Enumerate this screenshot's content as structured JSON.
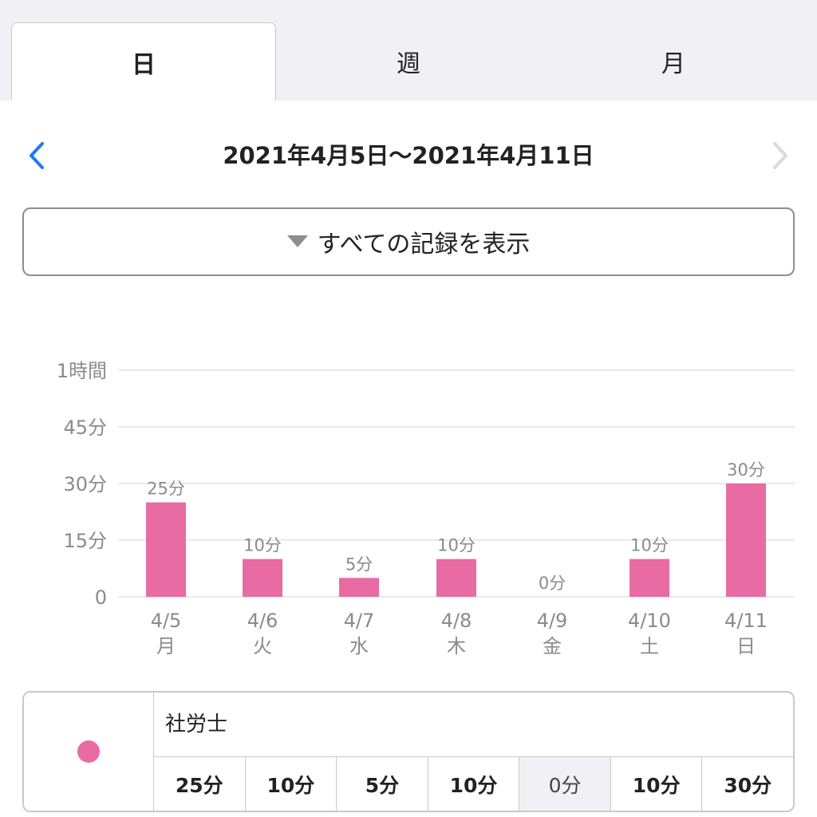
{
  "tabs": [
    {
      "label": "日",
      "active": true
    },
    {
      "label": "週",
      "active": false
    },
    {
      "label": "月",
      "active": false
    }
  ],
  "date_nav": {
    "range": "2021年4月5日〜2021年4月11日",
    "prev_icon": "chevron-left-icon",
    "next_icon": "chevron-right-icon",
    "accent_color": "#1a7cf0",
    "disabled_color": "#d9d9de"
  },
  "filter": {
    "label": "すべての記録を表示",
    "icon": "triangle-down-icon"
  },
  "chart_data": {
    "type": "bar",
    "y_ticks": [
      "0",
      "15分",
      "30分",
      "45分",
      "1時間"
    ],
    "ylim": [
      0,
      60
    ],
    "categories": [
      "4/5",
      "4/6",
      "4/7",
      "4/8",
      "4/9",
      "4/10",
      "4/11"
    ],
    "weekdays": [
      "月",
      "火",
      "水",
      "木",
      "金",
      "土",
      "日"
    ],
    "values": [
      25,
      10,
      5,
      10,
      0,
      10,
      30
    ],
    "value_labels": [
      "25分",
      "10分",
      "5分",
      "10分",
      "0分",
      "10分",
      "30分"
    ],
    "bar_color": "#e96ba3",
    "grid": true
  },
  "record_table": {
    "subject": "社労士",
    "dot_color": "#e96ba3",
    "values": [
      "25分",
      "10分",
      "5分",
      "10分",
      "0分",
      "10分",
      "30分"
    ]
  }
}
